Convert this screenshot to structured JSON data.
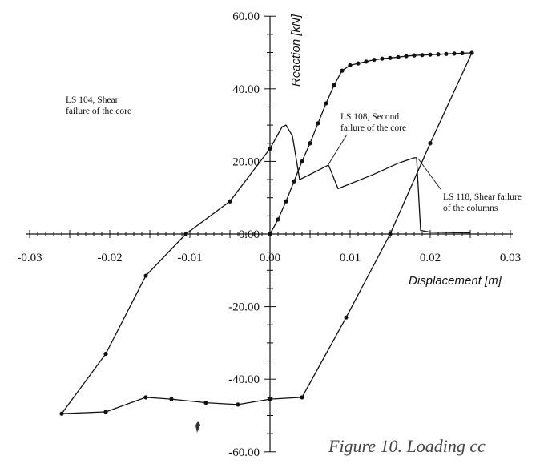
{
  "chart_data": {
    "type": "line",
    "title": "",
    "xlabel": "Displacement [m]",
    "ylabel": "Reaction [kN]",
    "xlim": [
      -0.03,
      0.03
    ],
    "ylim": [
      -60,
      60
    ],
    "x_ticks": [
      "-0.03",
      "-0.02",
      "-0.01",
      "0.00",
      "0.01",
      "0.02",
      "0.03"
    ],
    "y_ticks": [
      "60.00",
      "40.00",
      "20.00",
      "0.00",
      "-20.00",
      "-40.00",
      "-60.00"
    ],
    "grid": false,
    "series": [
      {
        "style": "solid-with-dots",
        "points": [
          [
            0.0,
            0.0
          ],
          [
            0.001,
            4.0
          ],
          [
            0.002,
            9.0
          ],
          [
            0.003,
            14.5
          ],
          [
            0.004,
            20.0
          ],
          [
            0.005,
            25.0
          ],
          [
            0.006,
            30.5
          ],
          [
            0.007,
            36.0
          ],
          [
            0.008,
            41.0
          ],
          [
            0.009,
            45.0
          ],
          [
            0.01,
            46.5
          ],
          [
            0.011,
            47.0
          ],
          [
            0.012,
            47.5
          ],
          [
            0.013,
            48.0
          ],
          [
            0.014,
            48.3
          ],
          [
            0.015,
            48.5
          ],
          [
            0.016,
            48.7
          ],
          [
            0.017,
            49.0
          ],
          [
            0.018,
            49.2
          ],
          [
            0.019,
            49.3
          ],
          [
            0.02,
            49.4
          ],
          [
            0.021,
            49.5
          ],
          [
            0.022,
            49.6
          ],
          [
            0.023,
            49.7
          ],
          [
            0.024,
            49.8
          ],
          [
            0.0252,
            49.9
          ],
          [
            0.02,
            25.0
          ],
          [
            0.015,
            0.0
          ],
          [
            0.0095,
            -23.0
          ],
          [
            0.004,
            -45.0
          ],
          [
            0.0,
            -45.5
          ],
          [
            -0.004,
            -47.0
          ],
          [
            -0.008,
            -46.5
          ],
          [
            -0.0123,
            -45.5
          ],
          [
            -0.0155,
            -45.0
          ],
          [
            -0.0205,
            -49.0
          ],
          [
            -0.026,
            -49.5
          ],
          [
            -0.0205,
            -33.0
          ],
          [
            -0.0155,
            -11.5
          ],
          [
            -0.0105,
            0.0
          ],
          [
            -0.005,
            9.0
          ],
          [
            0.0,
            23.5
          ]
        ]
      },
      {
        "style": "solid",
        "points": [
          [
            0.0,
            23.5
          ],
          [
            0.0015,
            29.5
          ],
          [
            0.002,
            30.0
          ],
          [
            0.0028,
            27.0
          ],
          [
            0.0037,
            15.0
          ],
          [
            0.006,
            17.5
          ],
          [
            0.0073,
            19.0
          ],
          [
            0.0085,
            12.5
          ],
          [
            0.013,
            16.5
          ],
          [
            0.016,
            19.5
          ],
          [
            0.018,
            21.0
          ],
          [
            0.0183,
            21.0
          ],
          [
            0.0188,
            1.0
          ],
          [
            0.02,
            0.5
          ],
          [
            0.025,
            0.3
          ]
        ]
      }
    ],
    "annotations": [
      {
        "lines": [
          "LS 104, Shear",
          "failure of the core"
        ]
      },
      {
        "lines": [
          "LS 108, Second",
          "failure of the core"
        ]
      },
      {
        "lines": [
          "LS 118, Shear failure",
          "of the columns"
        ]
      }
    ],
    "caption": "Figure 10. Loading cc"
  }
}
